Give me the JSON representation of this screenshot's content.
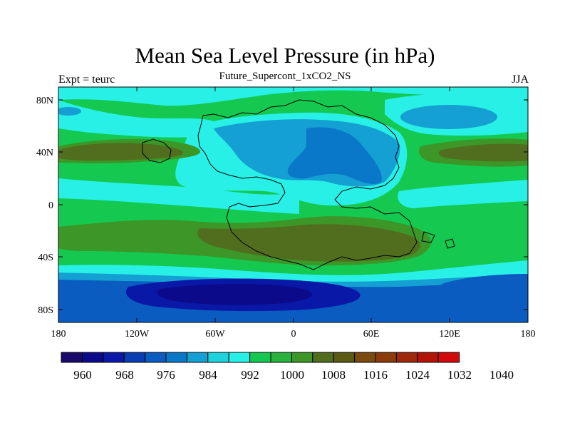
{
  "title": "Mean Sea Level Pressure (in hPa)",
  "subtitle": "Future_Supercont_1xCO2_NS",
  "left_label": "Expt = teurc",
  "right_label": "JJA",
  "map": {
    "lat_ticks": [
      "80N",
      "40N",
      "0",
      "40S",
      "80S"
    ],
    "lon_ticks": [
      "180",
      "120W",
      "60W",
      "0",
      "60E",
      "120E",
      "180"
    ]
  },
  "colorbar": {
    "colors": [
      "#1a0a6b",
      "#0a0a8a",
      "#0a18a8",
      "#0a3cb4",
      "#0a5cc0",
      "#0a78c8",
      "#14a0d2",
      "#1ed2dc",
      "#28f0e6",
      "#14c850",
      "#28b43c",
      "#3c9628",
      "#506e1e",
      "#5a5a14",
      "#7a4a0e",
      "#8c3c0a",
      "#a0280a",
      "#b41408",
      "#d20a0a"
    ],
    "labels": [
      "960",
      "968",
      "976",
      "984",
      "992",
      "1000",
      "1008",
      "1016",
      "1024",
      "1032",
      "1040"
    ]
  }
}
